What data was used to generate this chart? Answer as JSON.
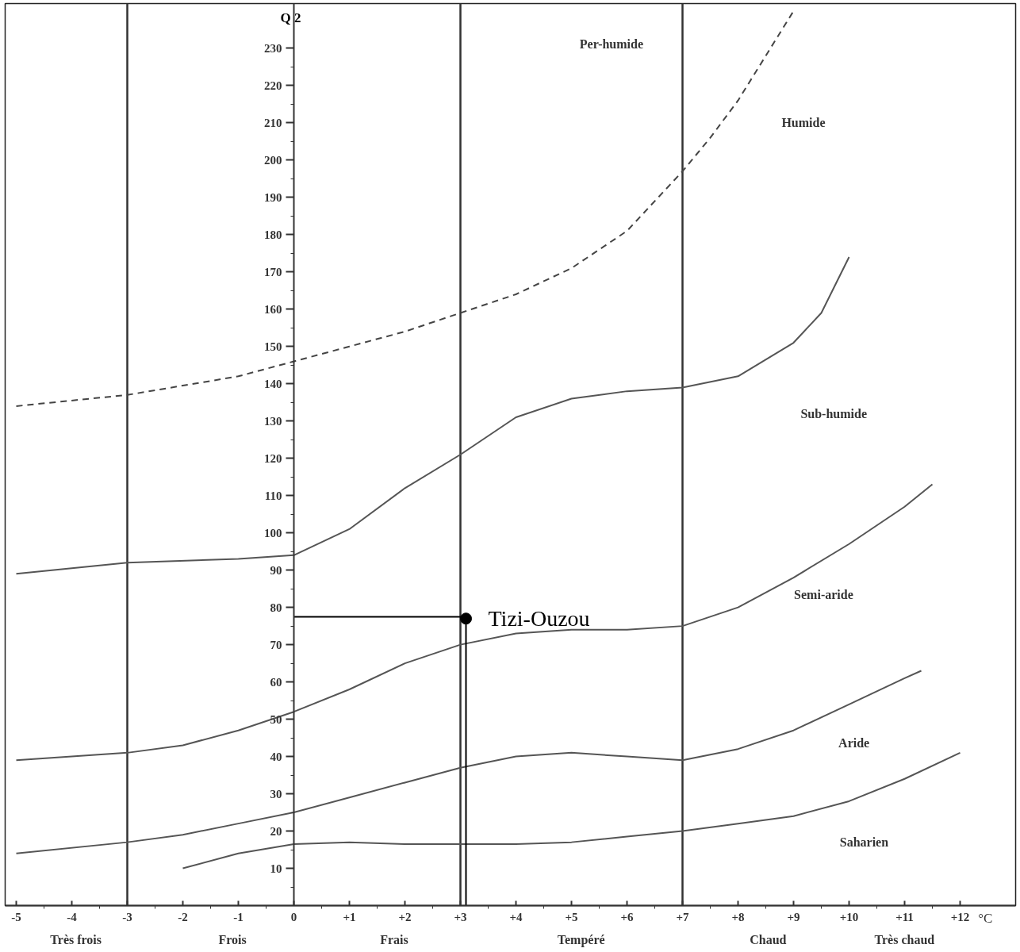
{
  "chart_data": {
    "type": "line",
    "xlabel": "°C",
    "ylabel": "Q 2",
    "xlim": [
      -5.2,
      13
    ],
    "ylim": [
      0,
      242
    ],
    "xticks": [
      -5,
      -4,
      -3,
      -2,
      -1,
      0,
      {
        "value": 1,
        "label": "+1"
      },
      {
        "value": 2,
        "label": "+2"
      },
      {
        "value": 3,
        "label": "+3"
      },
      {
        "value": 4,
        "label": "+4"
      },
      {
        "value": 5,
        "label": "+5"
      },
      {
        "value": 6,
        "label": "+6"
      },
      {
        "value": 7,
        "label": "+7"
      },
      {
        "value": 8,
        "label": "+8"
      },
      {
        "value": 9,
        "label": "+9"
      },
      {
        "value": 10,
        "label": "+10"
      },
      {
        "value": 11,
        "label": "+11"
      },
      {
        "value": 12,
        "label": "+12"
      }
    ],
    "yticks": [
      10,
      20,
      30,
      40,
      50,
      60,
      70,
      80,
      90,
      100,
      110,
      120,
      130,
      140,
      150,
      160,
      170,
      180,
      190,
      200,
      210,
      220,
      230
    ],
    "series": [
      {
        "line_style": "dashed",
        "color": "#444444",
        "x": [
          -5,
          -3,
          -1,
          0,
          1,
          2,
          3,
          4,
          5,
          6,
          7,
          7.5,
          8,
          8.5,
          9
        ],
        "values": [
          134,
          137,
          142,
          146,
          150,
          154,
          159,
          164,
          171,
          181,
          197,
          206,
          216,
          228,
          240
        ]
      },
      {
        "color": "#555555",
        "x": [
          -5,
          -3,
          -1,
          0,
          1,
          2,
          3,
          4,
          5,
          6,
          7,
          8,
          9,
          9.5,
          10
        ],
        "values": [
          89,
          92,
          93,
          94,
          101,
          112,
          121,
          131,
          136,
          138,
          139,
          142,
          151,
          159,
          174
        ]
      },
      {
        "color": "#555555",
        "x": [
          -5,
          -3,
          -2,
          -1,
          0,
          1,
          2,
          3,
          4,
          5,
          6,
          7,
          8,
          9,
          10,
          11,
          11.5
        ],
        "values": [
          39,
          41,
          43,
          47,
          52,
          58,
          65,
          70,
          73,
          74,
          74,
          75,
          80,
          88,
          97,
          107,
          113
        ]
      },
      {
        "color": "#555555",
        "x": [
          -5,
          -3,
          -2,
          -1,
          0,
          1,
          2,
          3,
          4,
          5,
          6,
          7,
          8,
          9,
          10,
          11,
          11.3
        ],
        "values": [
          14,
          17,
          19,
          22,
          25,
          29,
          33,
          37,
          40,
          41,
          40,
          39,
          42,
          47,
          54,
          61,
          63
        ]
      },
      {
        "color": "#555555",
        "x": [
          -2,
          -1,
          0,
          1,
          2,
          3,
          4,
          5,
          6,
          7,
          8,
          9,
          10,
          11,
          12
        ],
        "values": [
          10,
          14,
          16.5,
          17,
          16.5,
          16.5,
          16.5,
          17,
          18.5,
          20,
          22,
          24,
          28,
          34,
          41
        ]
      },
      {
        "color": "#000000",
        "x": [
          0,
          3.1,
          3.1
        ],
        "values": [
          77.5,
          77.5,
          0
        ]
      },
      {
        "type": "scatter",
        "marker": "circle",
        "color": "#000000",
        "x": [
          3.1
        ],
        "values": [
          77
        ]
      }
    ],
    "ref_lines": [
      {
        "axis": "x",
        "value": -3,
        "color": "#333333"
      },
      {
        "axis": "x",
        "value": 3,
        "color": "#333333"
      },
      {
        "axis": "x",
        "value": 7,
        "color": "#333333"
      }
    ],
    "annotations": [
      "Per-humide",
      "Humide",
      "Sub-humide",
      "Semi-aride",
      "Aride",
      "Saharien",
      "Très frois",
      "Frois",
      "Frais",
      "Tempéré",
      "Chaud",
      "Très chaud",
      {
        "text": "Tizi-Ouzou",
        "x": 3.1,
        "y": 77
      }
    ]
  }
}
